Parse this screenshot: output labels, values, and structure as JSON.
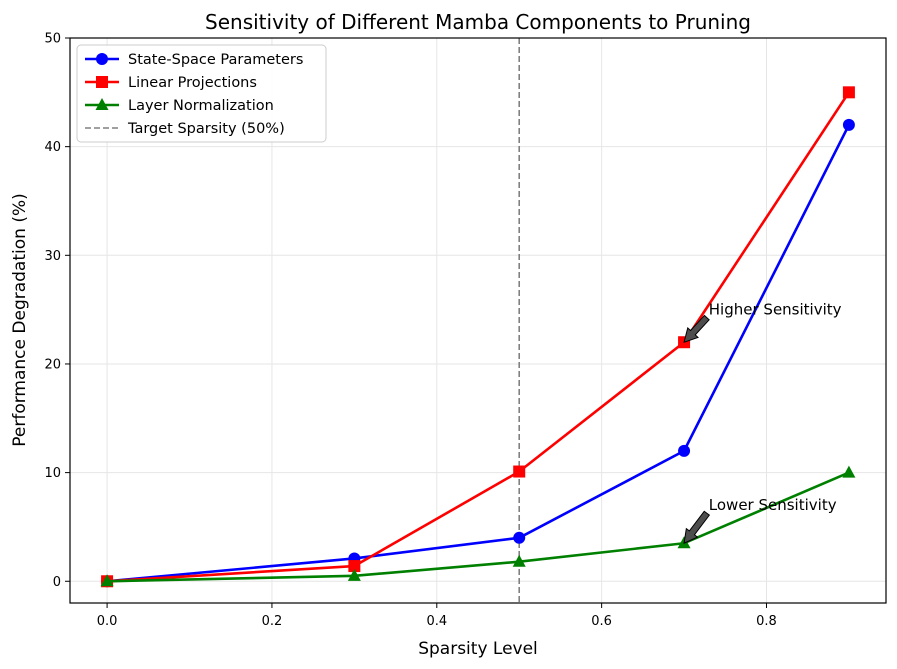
{
  "chart_data": {
    "type": "line",
    "title": "Sensitivity of Different Mamba Components to Pruning",
    "xlabel": "Sparsity Level",
    "ylabel": "Performance Degradation (%)",
    "xlim": [
      -0.045,
      0.945
    ],
    "ylim": [
      -2,
      50
    ],
    "x_ticks": [
      0.0,
      0.2,
      0.4,
      0.6,
      0.8
    ],
    "x_tick_labels": [
      "0.0",
      "0.2",
      "0.4",
      "0.6",
      "0.8"
    ],
    "y_ticks": [
      0,
      10,
      20,
      30,
      40,
      50
    ],
    "y_tick_labels": [
      "0",
      "10",
      "20",
      "30",
      "40",
      "50"
    ],
    "grid": true,
    "legend_position": "top-left",
    "x": [
      0.0,
      0.3,
      0.5,
      0.7,
      0.9
    ],
    "series": [
      {
        "name": "State-Space Parameters",
        "color": "#0000ff",
        "marker": "circle",
        "values": [
          0,
          2.1,
          4,
          12,
          42
        ]
      },
      {
        "name": "Linear Projections",
        "color": "#ff0000",
        "marker": "square",
        "values": [
          0,
          1.4,
          10.1,
          22,
          45
        ]
      },
      {
        "name": "Layer Normalization",
        "color": "#008000",
        "marker": "triangle",
        "values": [
          0,
          0.5,
          1.8,
          3.5,
          10
        ]
      }
    ],
    "reference_line": {
      "name": "Target Sparsity (50%)",
      "x": 0.5,
      "color": "#808080",
      "style": "dashed"
    },
    "annotations": [
      {
        "text": "Higher Sensitivity",
        "point": [
          0.7,
          22
        ],
        "text_at": [
          0.73,
          25
        ]
      },
      {
        "text": "Lower Sensitivity",
        "point": [
          0.7,
          3.5
        ],
        "text_at": [
          0.73,
          7
        ]
      }
    ]
  }
}
